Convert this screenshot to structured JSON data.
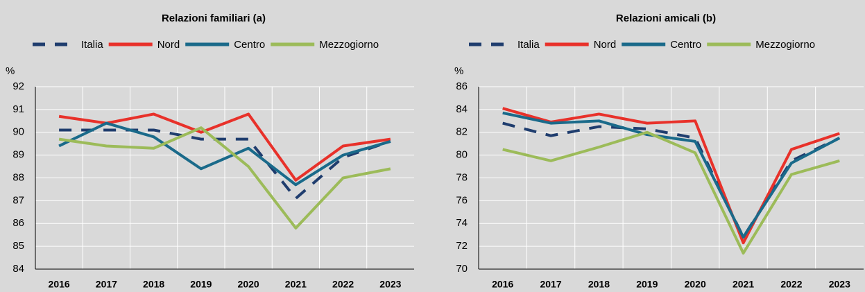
{
  "chart_data": [
    {
      "type": "line",
      "title": "Relazioni familiari (a)",
      "y_unit": "%",
      "categories": [
        "2016",
        "2017",
        "2018",
        "2019",
        "2020",
        "2021",
        "2022",
        "2023"
      ],
      "series": [
        {
          "name": "Italia",
          "color": "#1f3d6e",
          "dashed": true,
          "values": [
            90.1,
            90.1,
            90.1,
            89.7,
            89.7,
            87.1,
            88.9,
            89.6
          ]
        },
        {
          "name": "Nord",
          "color": "#e8312a",
          "values": [
            90.7,
            90.4,
            90.8,
            90.0,
            90.8,
            87.9,
            89.4,
            89.7
          ]
        },
        {
          "name": "Centro",
          "color": "#1a6a8a",
          "values": [
            89.4,
            90.4,
            89.8,
            88.4,
            89.3,
            87.7,
            89.0,
            89.6
          ]
        },
        {
          "name": "Mezzogiorno",
          "color": "#9cbb59",
          "values": [
            89.7,
            89.4,
            89.3,
            90.2,
            88.5,
            85.8,
            88.0,
            88.4
          ]
        }
      ],
      "ylim": [
        84,
        92
      ],
      "yticks": [
        84,
        85,
        86,
        87,
        88,
        89,
        90,
        91,
        92
      ],
      "grid": true
    },
    {
      "type": "line",
      "title": "Relazioni amicali (b)",
      "y_unit": "%",
      "categories": [
        "2016",
        "2017",
        "2018",
        "2019",
        "2020",
        "2021",
        "2022",
        "2023"
      ],
      "series": [
        {
          "name": "Italia",
          "color": "#1f3d6e",
          "dashed": true,
          "values": [
            82.8,
            81.7,
            82.5,
            82.3,
            81.5,
            72.8,
            79.5,
            81.5
          ]
        },
        {
          "name": "Nord",
          "color": "#e8312a",
          "values": [
            84.1,
            82.9,
            83.6,
            82.8,
            83.0,
            72.3,
            80.5,
            81.9
          ]
        },
        {
          "name": "Centro",
          "color": "#1a6a8a",
          "values": [
            83.7,
            82.8,
            83.0,
            81.8,
            81.2,
            72.8,
            79.3,
            81.5
          ]
        },
        {
          "name": "Mezzogiorno",
          "color": "#9cbb59",
          "values": [
            80.5,
            79.5,
            80.7,
            82.0,
            80.2,
            71.4,
            78.3,
            79.5
          ]
        }
      ],
      "ylim": [
        70,
        86
      ],
      "yticks": [
        70,
        72,
        74,
        76,
        78,
        80,
        82,
        84,
        86
      ],
      "grid": true
    }
  ]
}
